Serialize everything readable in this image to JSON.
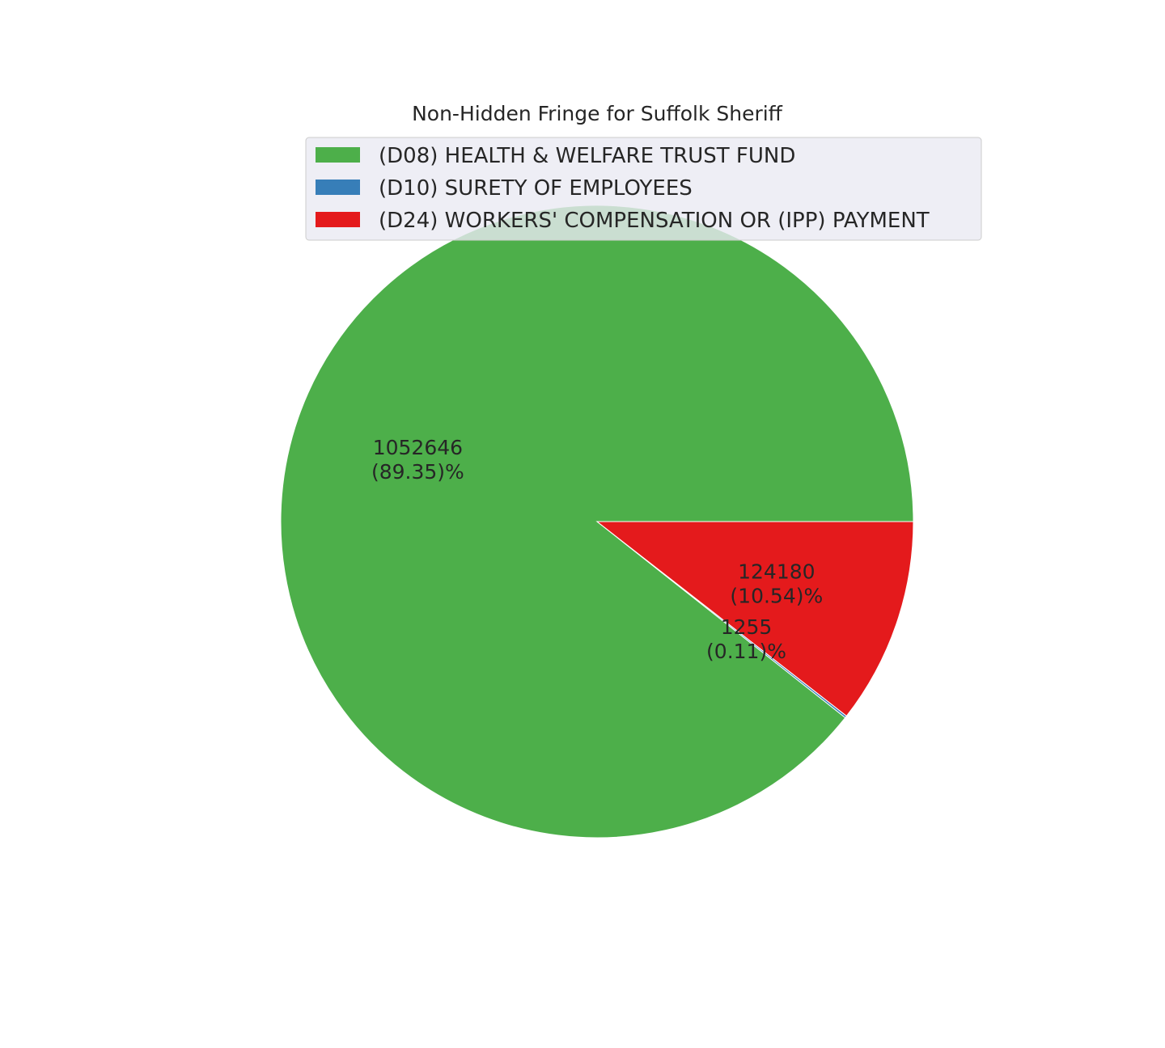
{
  "chart_data": {
    "type": "pie",
    "title": "Non-Hidden Fringe for Suffolk Sheriff",
    "legend_position": "top",
    "slices": [
      {
        "label": "(D08) HEALTH & WELFARE TRUST FUND",
        "value": 1052646,
        "percent_label": "(89.35)%",
        "color": "#4daf4a"
      },
      {
        "label": "(D10) SURETY OF EMPLOYEES",
        "value": 1255,
        "percent_label": "(0.11)%",
        "color": "#377eb8"
      },
      {
        "label": "(D24) WORKERS' COMPENSATION  OR (IPP) PAYMENT",
        "value": 124180,
        "percent_label": "(10.54)%",
        "color": "#e41a1c"
      }
    ]
  }
}
